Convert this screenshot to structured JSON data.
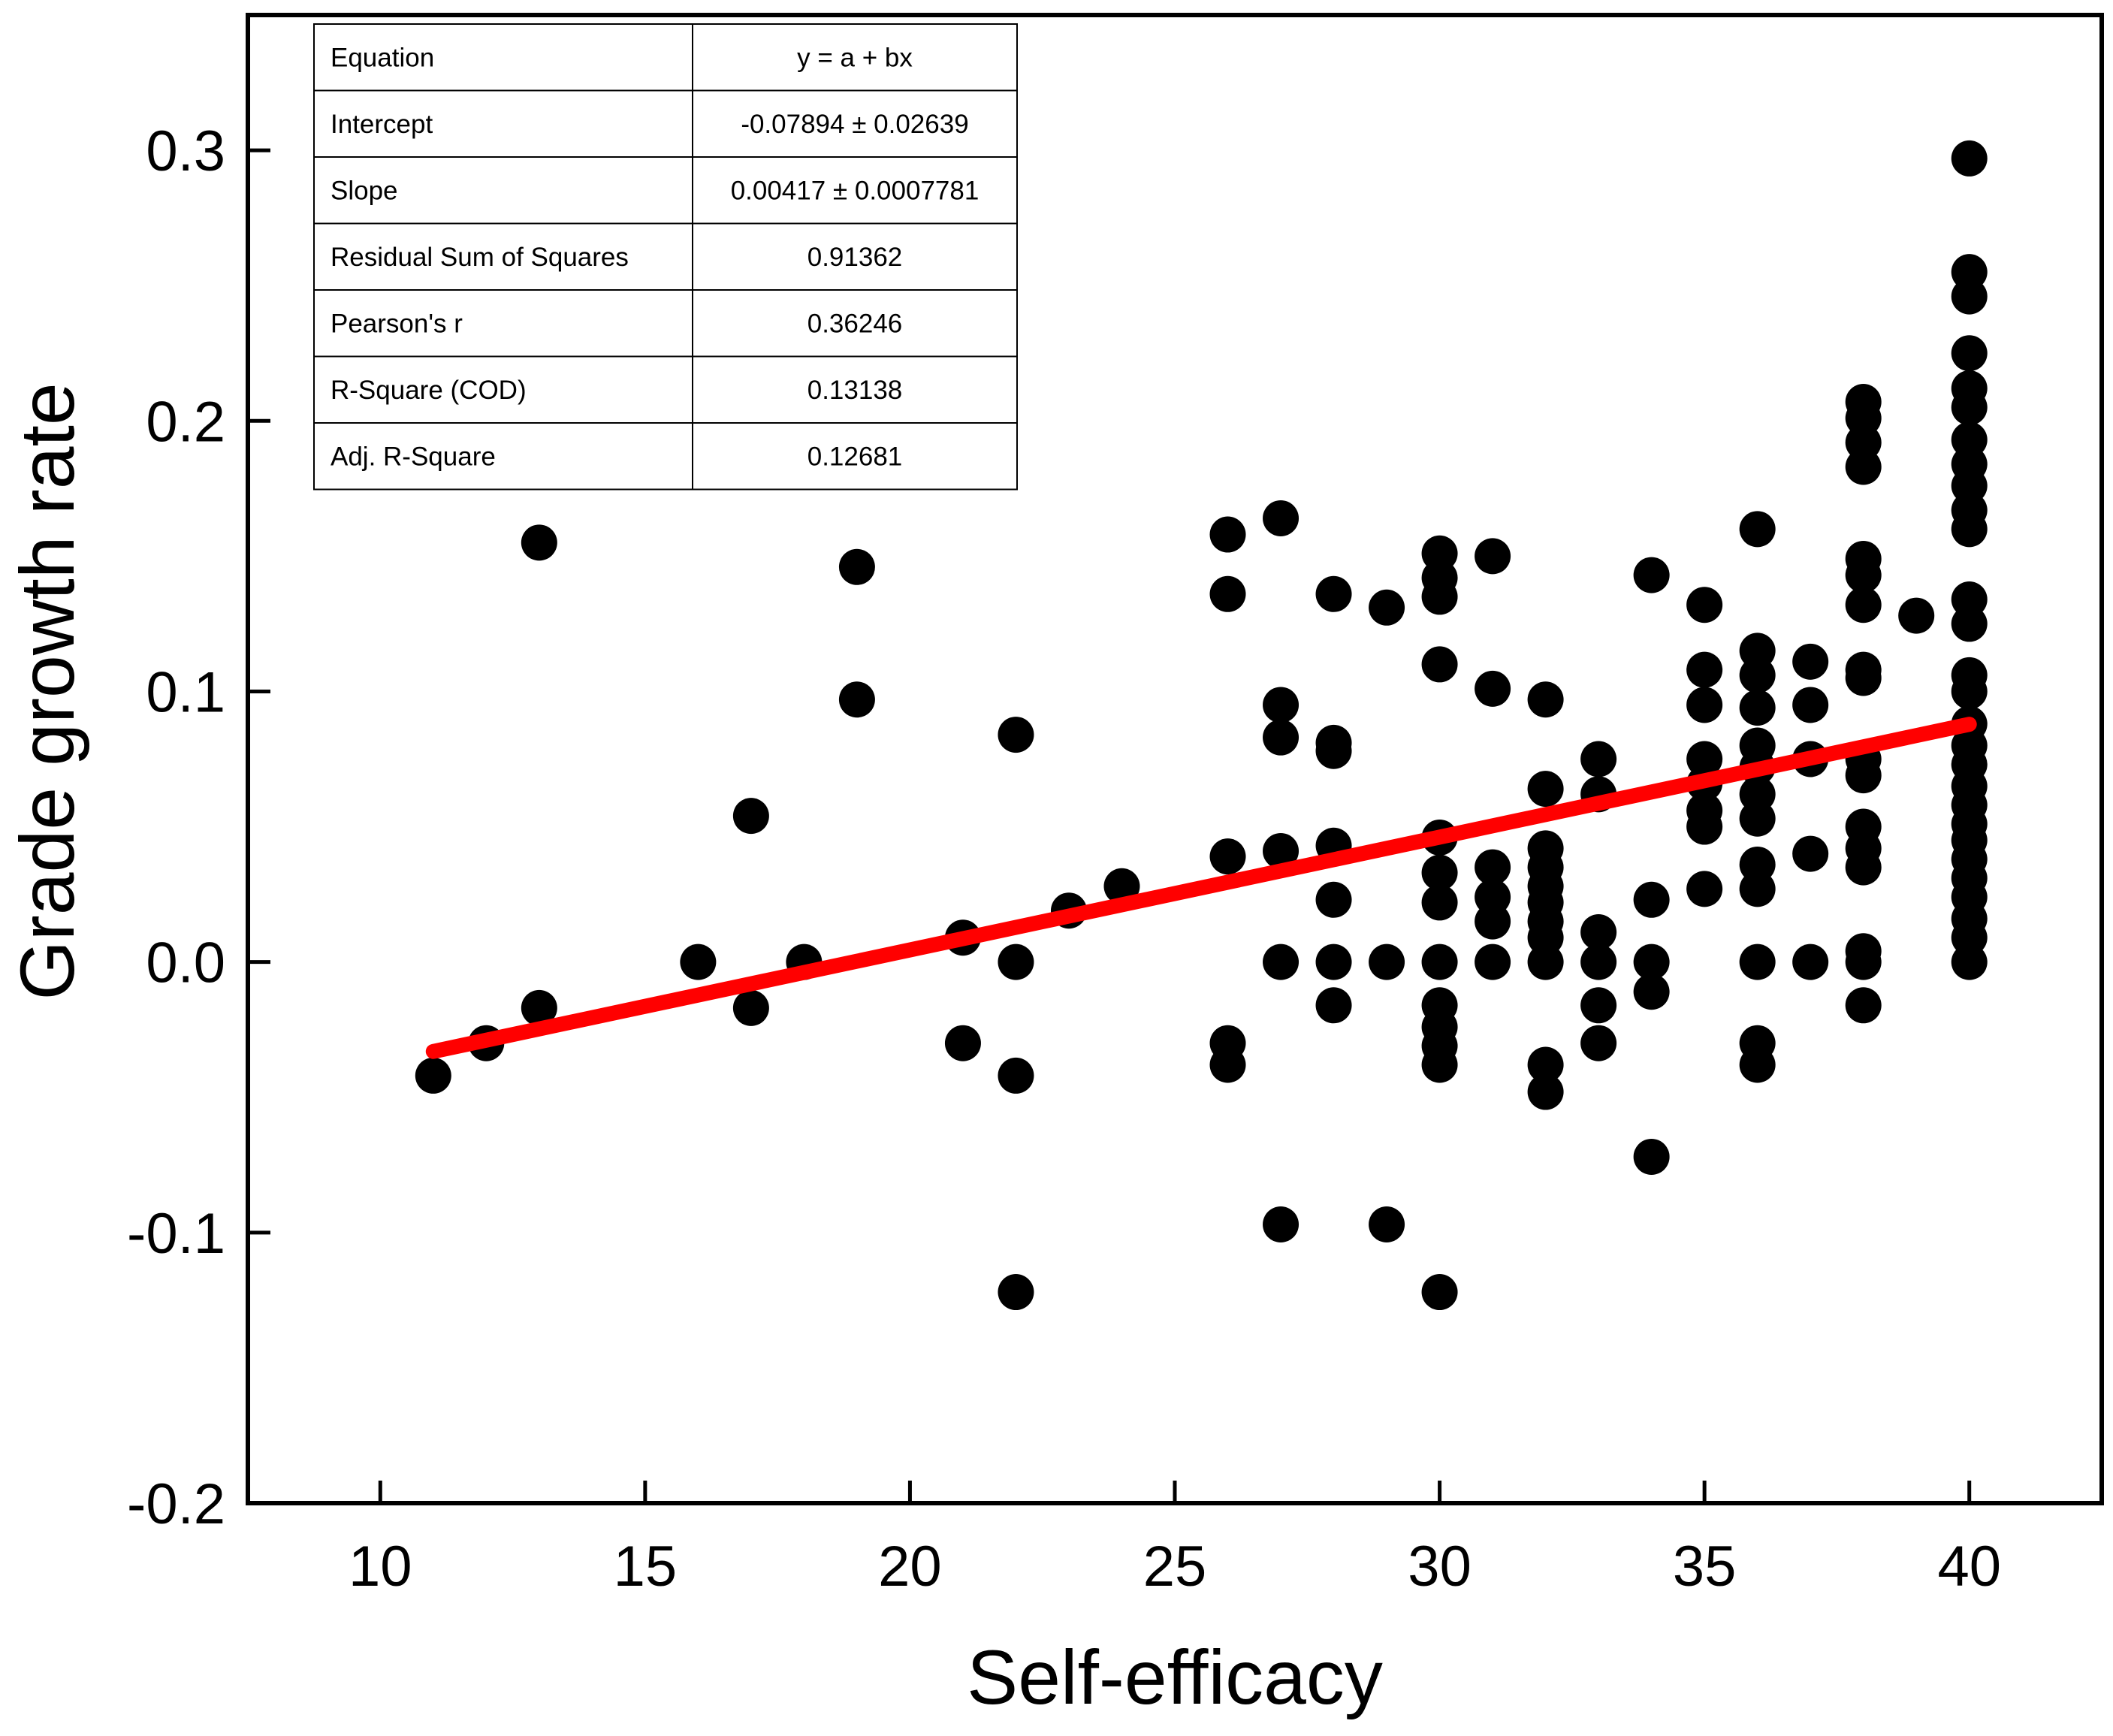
{
  "chart_data": {
    "type": "scatter",
    "title": "",
    "xlabel": "Self-efficacy",
    "ylabel": "Grade growth rate",
    "xlim": [
      7.5,
      42.5
    ],
    "ylim": [
      -0.2,
      0.35
    ],
    "xticks": [
      10,
      15,
      20,
      25,
      30,
      35,
      40
    ],
    "yticks": [
      -0.2,
      -0.1,
      0.0,
      0.1,
      0.2,
      0.3
    ],
    "xtick_labels": [
      "10",
      "15",
      "20",
      "25",
      "30",
      "35",
      "40"
    ],
    "ytick_labels": [
      "-0.2",
      "-0.1",
      "0.0",
      "0.1",
      "0.2",
      "0.3"
    ],
    "grid": false,
    "point_color": "#000000",
    "fit_color": "#ff0000",
    "series": [
      {
        "name": "Data",
        "points": [
          [
            11,
            -0.042
          ],
          [
            12,
            -0.03
          ],
          [
            13,
            0.155
          ],
          [
            13,
            -0.017
          ],
          [
            16,
            0.0
          ],
          [
            17,
            0.054
          ],
          [
            17,
            -0.017
          ],
          [
            18,
            0.0
          ],
          [
            19,
            0.146
          ],
          [
            19,
            0.097
          ],
          [
            21,
            0.009
          ],
          [
            21,
            -0.03
          ],
          [
            22,
            0.084
          ],
          [
            22,
            0.0
          ],
          [
            22,
            -0.042
          ],
          [
            22,
            -0.122
          ],
          [
            23,
            0.019
          ],
          [
            24,
            0.028
          ],
          [
            26,
            0.158
          ],
          [
            26,
            0.136
          ],
          [
            26,
            0.039
          ],
          [
            26,
            -0.03
          ],
          [
            26,
            -0.038
          ],
          [
            27,
            0.164
          ],
          [
            27,
            0.095
          ],
          [
            27,
            0.083
          ],
          [
            27,
            0.041
          ],
          [
            27,
            0.0
          ],
          [
            27,
            -0.097
          ],
          [
            28,
            0.136
          ],
          [
            28,
            0.081
          ],
          [
            28,
            0.078
          ],
          [
            28,
            0.043
          ],
          [
            28,
            0.023
          ],
          [
            28,
            0.0
          ],
          [
            28,
            -0.016
          ],
          [
            29,
            0.131
          ],
          [
            29,
            0.0
          ],
          [
            29,
            -0.097
          ],
          [
            30,
            0.151
          ],
          [
            30,
            0.142
          ],
          [
            30,
            0.135
          ],
          [
            30,
            0.11
          ],
          [
            30,
            0.046
          ],
          [
            30,
            0.033
          ],
          [
            30,
            0.022
          ],
          [
            30,
            0.0
          ],
          [
            30,
            -0.016
          ],
          [
            30,
            -0.024
          ],
          [
            30,
            -0.031
          ],
          [
            30,
            -0.038
          ],
          [
            30,
            -0.122
          ],
          [
            31,
            0.15
          ],
          [
            31,
            0.101
          ],
          [
            31,
            0.035
          ],
          [
            31,
            0.024
          ],
          [
            31,
            0.015
          ],
          [
            31,
            0.0
          ],
          [
            32,
            0.097
          ],
          [
            32,
            0.064
          ],
          [
            32,
            0.042
          ],
          [
            32,
            0.035
          ],
          [
            32,
            0.028
          ],
          [
            32,
            0.022
          ],
          [
            32,
            0.015
          ],
          [
            32,
            0.009
          ],
          [
            32,
            0.0
          ],
          [
            32,
            -0.038
          ],
          [
            32,
            -0.048
          ],
          [
            33,
            0.075
          ],
          [
            33,
            0.062
          ],
          [
            33,
            0.011
          ],
          [
            33,
            0.0
          ],
          [
            33,
            -0.016
          ],
          [
            33,
            -0.03
          ],
          [
            34,
            0.143
          ],
          [
            34,
            0.023
          ],
          [
            34,
            0.0
          ],
          [
            34,
            -0.011
          ],
          [
            34,
            -0.072
          ],
          [
            35,
            0.132
          ],
          [
            35,
            0.108
          ],
          [
            35,
            0.095
          ],
          [
            35,
            0.075
          ],
          [
            35,
            0.066
          ],
          [
            35,
            0.056
          ],
          [
            35,
            0.05
          ],
          [
            35,
            0.027
          ],
          [
            36,
            0.16
          ],
          [
            36,
            0.115
          ],
          [
            36,
            0.106
          ],
          [
            36,
            0.094
          ],
          [
            36,
            0.08
          ],
          [
            36,
            0.072
          ],
          [
            36,
            0.062
          ],
          [
            36,
            0.053
          ],
          [
            36,
            0.036
          ],
          [
            36,
            0.027
          ],
          [
            36,
            0.0
          ],
          [
            36,
            -0.03
          ],
          [
            36,
            -0.038
          ],
          [
            37,
            0.111
          ],
          [
            37,
            0.095
          ],
          [
            37,
            0.075
          ],
          [
            37,
            0.04
          ],
          [
            37,
            0.0
          ],
          [
            38,
            0.207
          ],
          [
            38,
            0.201
          ],
          [
            38,
            0.192
          ],
          [
            38,
            0.183
          ],
          [
            38,
            0.149
          ],
          [
            38,
            0.143
          ],
          [
            38,
            0.132
          ],
          [
            38,
            0.108
          ],
          [
            38,
            0.105
          ],
          [
            38,
            0.075
          ],
          [
            38,
            0.069
          ],
          [
            38,
            0.05
          ],
          [
            38,
            0.042
          ],
          [
            38,
            0.035
          ],
          [
            38,
            0.004
          ],
          [
            38,
            0.0
          ],
          [
            38,
            -0.016
          ],
          [
            39,
            0.128
          ],
          [
            40,
            0.297
          ],
          [
            40,
            0.255
          ],
          [
            40,
            0.246
          ],
          [
            40,
            0.225
          ],
          [
            40,
            0.212
          ],
          [
            40,
            0.205
          ],
          [
            40,
            0.193
          ],
          [
            40,
            0.184
          ],
          [
            40,
            0.176
          ],
          [
            40,
            0.167
          ],
          [
            40,
            0.16
          ],
          [
            40,
            0.134
          ],
          [
            40,
            0.125
          ],
          [
            40,
            0.106
          ],
          [
            40,
            0.1
          ],
          [
            40,
            0.088
          ],
          [
            40,
            0.08
          ],
          [
            40,
            0.073
          ],
          [
            40,
            0.065
          ],
          [
            40,
            0.058
          ],
          [
            40,
            0.051
          ],
          [
            40,
            0.045
          ],
          [
            40,
            0.038
          ],
          [
            40,
            0.031
          ],
          [
            40,
            0.024
          ],
          [
            40,
            0.016
          ],
          [
            40,
            0.009
          ],
          [
            40,
            0.0
          ]
        ]
      }
    ],
    "fit": {
      "type": "linear",
      "intercept": -0.07894,
      "slope": 0.00417,
      "x_range": [
        11,
        40
      ]
    },
    "stats_table": [
      [
        "Equation",
        "y = a + bx"
      ],
      [
        "Intercept",
        "-0.07894 ± 0.02639"
      ],
      [
        "Slope",
        "0.00417 ± 0.0007781"
      ],
      [
        "Residual Sum of Squares",
        "0.91362"
      ],
      [
        "Pearson's r",
        "0.36246"
      ],
      [
        "R-Square (COD)",
        "0.13138"
      ],
      [
        "Adj. R-Square",
        "0.12681"
      ]
    ],
    "stats_table_placement": "top-left"
  }
}
